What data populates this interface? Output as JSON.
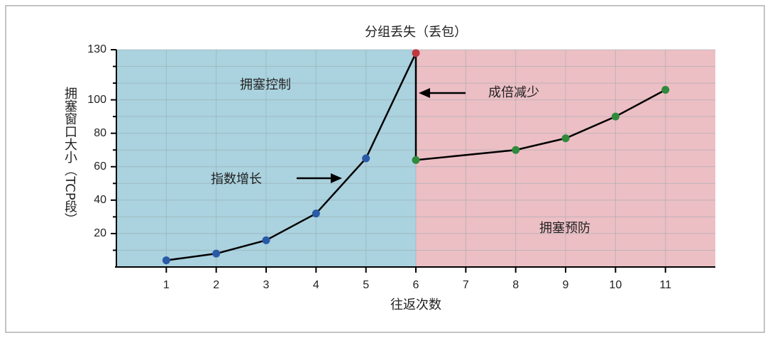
{
  "chart_data": {
    "type": "line",
    "title": "分组丢失（丢包）",
    "x_label": "往返次数",
    "y_label": "拥塞窗口大小（TCP段）",
    "xlim": [
      0,
      12
    ],
    "xticks": [
      1,
      2,
      3,
      4,
      5,
      6,
      7,
      8,
      9,
      10,
      11
    ],
    "ylim": [
      0,
      130
    ],
    "yticks": [
      20,
      40,
      60,
      80,
      100,
      130
    ],
    "minor_yticks": [
      10,
      30,
      50,
      70,
      90,
      110,
      120
    ],
    "grid": true,
    "split_x": 6,
    "regions": [
      {
        "name": "拥塞控制",
        "color": "#aad2df"
      },
      {
        "name": "拥塞预防",
        "color": "#ecbfc5"
      }
    ],
    "series": [
      {
        "color": "#2a5aa6",
        "x": [
          1,
          2,
          3,
          4,
          5
        ],
        "values": [
          4,
          8,
          16,
          32,
          65
        ]
      },
      {
        "color": "#2f8a3c",
        "x": [
          6,
          8,
          9,
          10,
          11
        ],
        "values": [
          64,
          70,
          77,
          90,
          106
        ]
      }
    ],
    "loss_point": {
      "x": 6,
      "y": 128,
      "color": "#c0393f"
    },
    "annotations": [
      "指数增长",
      "成倍减少"
    ]
  }
}
